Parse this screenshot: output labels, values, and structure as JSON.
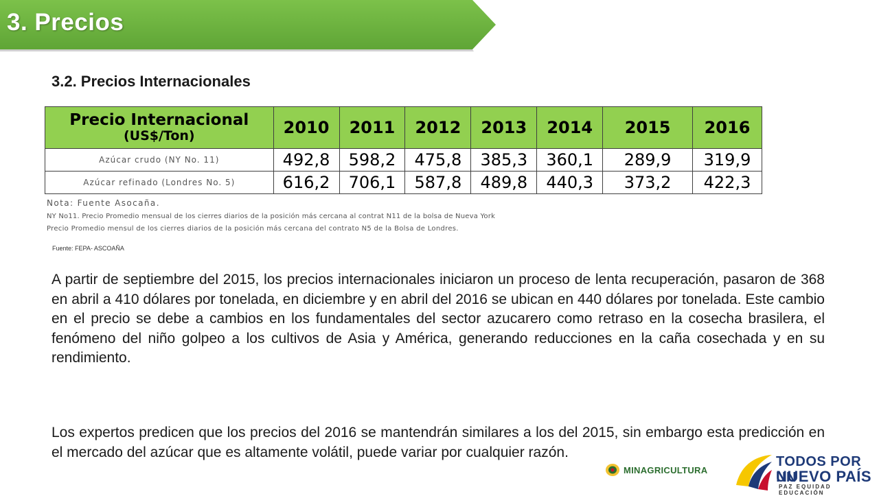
{
  "header": {
    "title": "3. Precios",
    "accent_color": "#6db33f"
  },
  "section": {
    "title": "3.2. Precios Internacionales"
  },
  "table": {
    "header_label_main": "Precio Internacional",
    "header_label_sub": "(US$/Ton)",
    "years": [
      "2010",
      "2011",
      "2012",
      "2013",
      "2014",
      "2015",
      "2016"
    ],
    "rows": [
      {
        "label": "Azúcar crudo (NY No. 11)",
        "values": [
          "492,8",
          "598,2",
          "475,8",
          "385,3",
          "360,1",
          "289,9",
          "319,9"
        ]
      },
      {
        "label": "Azúcar refinado (Londres No. 5)",
        "values": [
          "616,2",
          "706,1",
          "587,8",
          "489,8",
          "440,3",
          "373,2",
          "422,3"
        ]
      }
    ],
    "header_color": "#92d050"
  },
  "notes": {
    "line1": "Nota: Fuente Asocaña.",
    "line2": "NY No11. Precio Promedio mensual de los cierres diarios de la posición más cercana al contrat N11 de la bolsa de Nueva York",
    "line3": "Precio Promedio mensul de los cierres diarios de la posición más cercana del contrato N5 de la Bolsa de Londres."
  },
  "source": "Fuente: FEPA- ASCOAÑA",
  "paragraphs": [
    "A partir de septiembre del 2015, los precios internacionales  iniciaron un proceso de lenta recuperación, pasaron de 368  en abril a 410 dólares por tonelada, en diciembre y en abril del 2016 se ubican en 440 dólares por tonelada. Este cambio en el precio se debe a cambios en los fundamentales del sector azucarero como retraso en la cosecha brasilera, el fenómeno del niño golpeo a los cultivos de Asia y América, generando reducciones en la caña cosechada y en su rendimiento.",
    "Los expertos predicen que los precios del 2016 se mantendrán similares a los del 2015, sin embargo esta predicción en el mercado del azúcar que es altamente volátil, puede  variar por cualquier razón."
  ],
  "logos": {
    "ministry": "MINAGRICULTURA",
    "slogan_line1": "TODOS POR UN",
    "slogan_line2": "NUEVO PAÍS",
    "slogan_line3": "PAZ  EQUIDAD  EDUCACIÓN"
  }
}
